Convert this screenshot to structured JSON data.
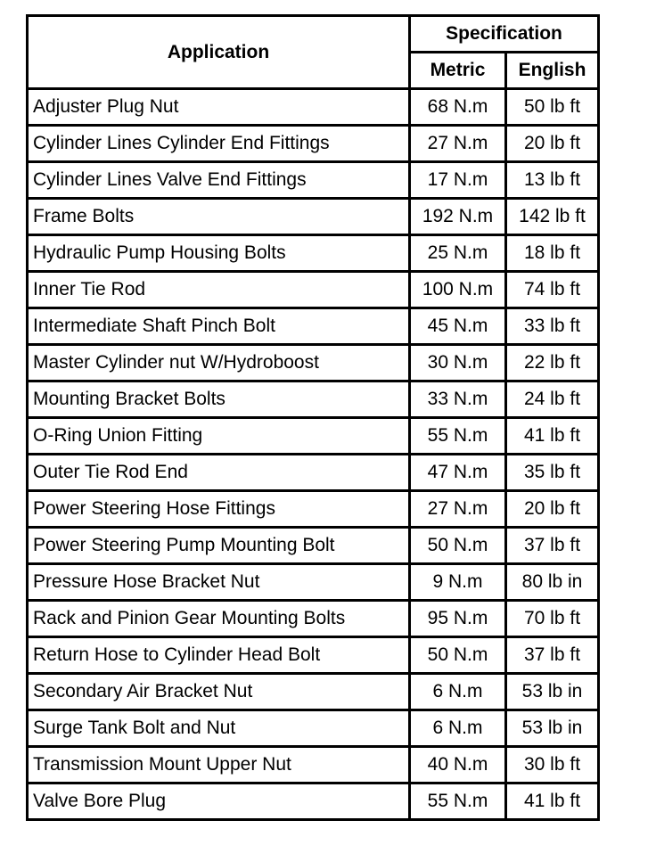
{
  "header": {
    "application": "Application",
    "specification": "Specification",
    "metric": "Metric",
    "english": "English"
  },
  "rows": [
    {
      "application": "Adjuster Plug Nut",
      "metric": "68 N.m",
      "english": "50 lb ft"
    },
    {
      "application": "Cylinder Lines Cylinder End Fittings",
      "metric": "27 N.m",
      "english": "20 lb ft"
    },
    {
      "application": "Cylinder Lines Valve End Fittings",
      "metric": "17 N.m",
      "english": "13 lb ft"
    },
    {
      "application": "Frame Bolts",
      "metric": "192 N.m",
      "english": "142 lb ft"
    },
    {
      "application": "Hydraulic Pump Housing Bolts",
      "metric": "25 N.m",
      "english": "18 lb ft"
    },
    {
      "application": "Inner Tie Rod",
      "metric": "100 N.m",
      "english": "74 lb ft"
    },
    {
      "application": "Intermediate Shaft Pinch Bolt",
      "metric": "45 N.m",
      "english": "33 lb ft"
    },
    {
      "application": "Master Cylinder nut W/Hydroboost",
      "metric": "30 N.m",
      "english": "22 lb ft"
    },
    {
      "application": "Mounting Bracket Bolts",
      "metric": "33 N.m",
      "english": "24 lb ft"
    },
    {
      "application": "O-Ring Union Fitting",
      "metric": "55 N.m",
      "english": "41 lb ft"
    },
    {
      "application": "Outer Tie Rod End",
      "metric": "47 N.m",
      "english": "35 lb ft"
    },
    {
      "application": "Power Steering Hose Fittings",
      "metric": "27 N.m",
      "english": "20 lb ft"
    },
    {
      "application": "Power Steering Pump Mounting Bolt",
      "metric": "50 N.m",
      "english": "37 lb ft"
    },
    {
      "application": "Pressure Hose Bracket Nut",
      "metric": "9 N.m",
      "english": "80 lb in"
    },
    {
      "application": "Rack and Pinion Gear Mounting Bolts",
      "metric": "95 N.m",
      "english": "70 lb ft"
    },
    {
      "application": "Return Hose to Cylinder Head Bolt",
      "metric": "50 N.m",
      "english": "37 lb ft"
    },
    {
      "application": "Secondary Air Bracket Nut",
      "metric": "6 N.m",
      "english": "53 lb in"
    },
    {
      "application": "Surge Tank Bolt and Nut",
      "metric": "6 N.m",
      "english": "53 lb in"
    },
    {
      "application": "Transmission Mount Upper Nut",
      "metric": "40 N.m",
      "english": "30 lb ft"
    },
    {
      "application": "Valve Bore Plug",
      "metric": "55 N.m",
      "english": "41 lb ft"
    }
  ]
}
